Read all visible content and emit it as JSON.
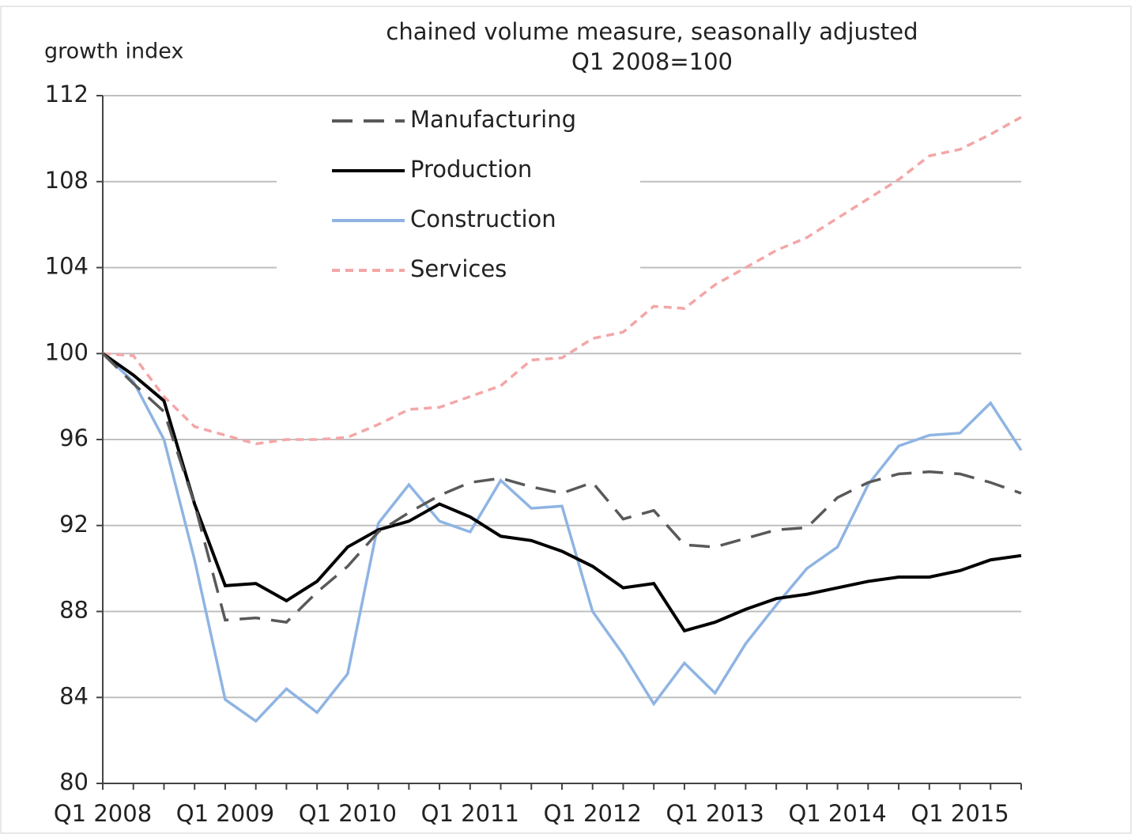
{
  "chart_data": {
    "type": "line",
    "title": "chained volume measure, seasonally adjusted",
    "subtitle": "Q1 2008=100",
    "y_label": "growth index",
    "categories": [
      "Q1 2008",
      null,
      null,
      null,
      "Q1 2009",
      null,
      null,
      null,
      "Q1 2010",
      null,
      null,
      null,
      "Q1 2011",
      null,
      null,
      null,
      "Q1 2012",
      null,
      null,
      null,
      "Q1 2013",
      null,
      null,
      null,
      "Q1 2014",
      null,
      null,
      null,
      "Q1 2015",
      null,
      null
    ],
    "ylim": [
      80,
      112
    ],
    "yticks": [
      80,
      84,
      88,
      92,
      96,
      100,
      104,
      108,
      112
    ],
    "grid": true,
    "legend": "top-center",
    "series": [
      {
        "name": "Manufacturing",
        "color": "#595959",
        "dash": "long-dash",
        "values": [
          100,
          98.6,
          97.3,
          93.0,
          87.6,
          87.7,
          87.5,
          88.9,
          90.1,
          91.7,
          92.6,
          93.4,
          94.0,
          94.2,
          93.8,
          93.5,
          94.0,
          92.3,
          92.7,
          91.1,
          91.0,
          91.4,
          91.8,
          91.9,
          93.3,
          94.0,
          94.4,
          94.5,
          94.4,
          94.0,
          93.5
        ]
      },
      {
        "name": "Production",
        "color": "#000000",
        "dash": "solid",
        "values": [
          100,
          99.0,
          97.8,
          93.0,
          89.2,
          89.3,
          88.5,
          89.4,
          91.0,
          91.8,
          92.2,
          93.0,
          92.4,
          91.5,
          91.3,
          90.8,
          90.1,
          89.1,
          89.3,
          87.1,
          87.5,
          88.1,
          88.6,
          88.8,
          89.1,
          89.4,
          89.6,
          89.6,
          89.9,
          90.4,
          90.6
        ]
      },
      {
        "name": "Construction",
        "color": "#8eb4e3",
        "dash": "solid",
        "values": [
          100,
          98.7,
          96.0,
          90.4,
          83.9,
          82.9,
          84.4,
          83.3,
          85.1,
          92.1,
          93.9,
          92.2,
          91.7,
          94.1,
          92.8,
          92.9,
          88.0,
          86.0,
          83.7,
          85.6,
          84.2,
          86.5,
          88.3,
          90.0,
          91.0,
          93.9,
          95.7,
          96.2,
          96.3,
          97.7,
          95.5
        ]
      },
      {
        "name": "Services",
        "color": "#f4a6a6",
        "dash": "short-dash",
        "values": [
          100,
          99.9,
          98.0,
          96.6,
          96.2,
          95.8,
          96.0,
          96.0,
          96.1,
          96.7,
          97.4,
          97.5,
          98.0,
          98.5,
          99.7,
          99.8,
          100.7,
          101.0,
          102.2,
          102.1,
          103.2,
          104.0,
          104.8,
          105.4,
          106.3,
          107.2,
          108.1,
          109.2,
          109.5,
          110.2,
          111.0
        ]
      }
    ]
  }
}
